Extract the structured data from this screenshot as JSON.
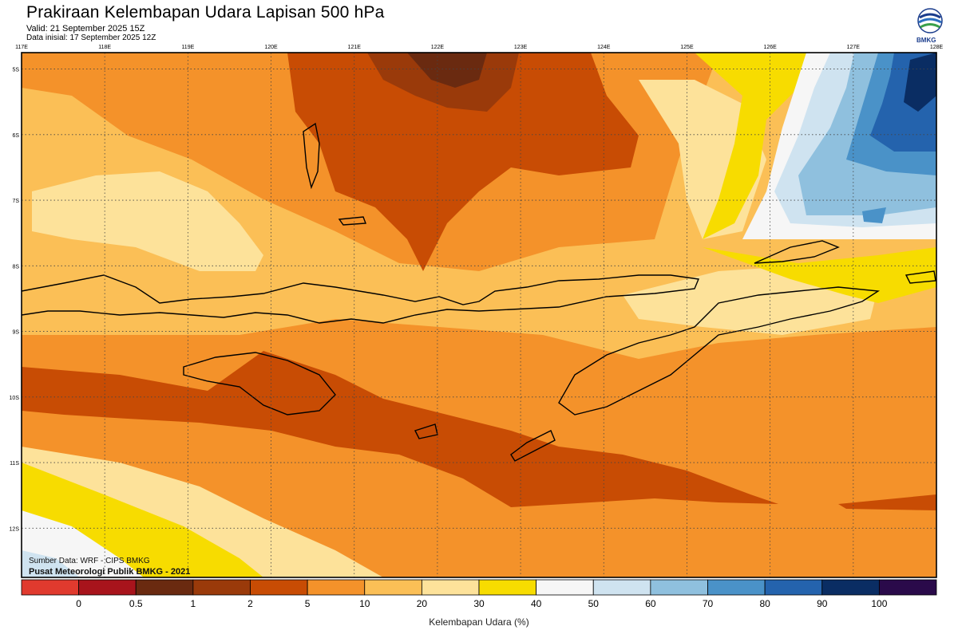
{
  "header": {
    "title": "Prakiraan Kelembapan Udara Lapisan 500 hPa",
    "valid": "Valid: 21 September 2025 15Z",
    "initial": "Data inisial: 17 September 2025 12Z",
    "logo_text": "BMKG"
  },
  "map": {
    "lon_labels": [
      "117E",
      "118E",
      "119E",
      "120E",
      "121E",
      "122E",
      "123E",
      "124E",
      "125E",
      "126E",
      "127E",
      "128E"
    ],
    "lat_labels": [
      "5S",
      "6S",
      "7S",
      "8S",
      "9S",
      "10S",
      "11S",
      "12S"
    ],
    "region": {
      "lon": [
        117,
        128
      ],
      "lat": [
        -4.75,
        -12.75
      ]
    }
  },
  "credits": {
    "source": "Sumber Data: WRF - CIPS BMKG",
    "publisher": "Pusat Meteorologi Publik BMKG - 2021"
  },
  "legend": {
    "title": "Kelembapan Udara (%)",
    "ticks": [
      "0",
      "0.5",
      "1",
      "2",
      "5",
      "10",
      "20",
      "30",
      "40",
      "50",
      "60",
      "70",
      "80",
      "90",
      "100"
    ],
    "colors": [
      "#e03a2e",
      "#a8141c",
      "#6a2a10",
      "#9a3a0a",
      "#c84c04",
      "#f4922a",
      "#fbbf56",
      "#fde29a",
      "#f7dc00",
      "#f6f6f6",
      "#cfe3f0",
      "#8fc0de",
      "#4a92c8",
      "#2463ad",
      "#0a2d63",
      "#2a0a4a"
    ]
  }
}
